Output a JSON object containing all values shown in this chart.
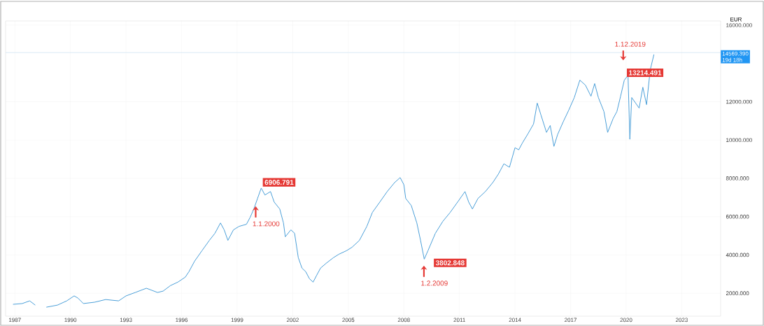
{
  "chart_data": {
    "type": "line",
    "ylabel": "EUR",
    "x": [
      1986.9,
      1987.4,
      1987.8,
      1988.1,
      1988.3,
      1988.7,
      1989.3,
      1989.8,
      1990.2,
      1990.4,
      1990.7,
      1991.3,
      1991.9,
      1992.6,
      1993.0,
      1993.5,
      1994.1,
      1994.7,
      1995.0,
      1995.4,
      1995.8,
      1996.2,
      1996.4,
      1996.7,
      1997.1,
      1997.5,
      1997.8,
      1998.1,
      1998.3,
      1998.5,
      1998.8,
      1999.1,
      1999.5,
      1999.7,
      1999.9,
      2000.1,
      2000.3,
      2000.5,
      2000.8,
      2001.0,
      2001.3,
      2001.5,
      2001.6,
      2001.9,
      2002.1,
      2002.3,
      2002.5,
      2002.7,
      2002.9,
      2003.1,
      2003.3,
      2003.5,
      2003.8,
      2004.2,
      2004.5,
      2004.9,
      2005.2,
      2005.6,
      2006.0,
      2006.3,
      2006.7,
      2007.1,
      2007.5,
      2007.8,
      2008.0,
      2008.1,
      2008.4,
      2008.7,
      2008.9,
      2009.1,
      2009.3,
      2009.7,
      2010.1,
      2010.5,
      2010.9,
      2011.3,
      2011.5,
      2011.7,
      2012.0,
      2012.4,
      2012.8,
      2013.1,
      2013.4,
      2013.7,
      2014.0,
      2014.2,
      2014.4,
      2014.7,
      2015.0,
      2015.2,
      2015.4,
      2015.7,
      2015.9,
      2016.1,
      2016.3,
      2016.6,
      2016.9,
      2017.2,
      2017.5,
      2017.8,
      2018.1,
      2018.3,
      2018.5,
      2018.8,
      2019.0,
      2019.3,
      2019.5,
      2019.7,
      2019.9,
      2020.1,
      2020.2,
      2020.3,
      2020.7,
      2020.9,
      2021.1,
      2021.3,
      2021.5
    ],
    "series": [
      {
        "color": "#4a9fd8",
        "values": [
          1420,
          1460,
          1600,
          1380,
          null,
          1270,
          1380,
          1600,
          1860,
          1750,
          1460,
          1530,
          1670,
          1600,
          1860,
          2040,
          2260,
          2040,
          2110,
          2400,
          2580,
          2840,
          3130,
          3670,
          4220,
          4760,
          5130,
          5670,
          5310,
          4760,
          5310,
          5490,
          5600,
          5960,
          6400,
          6950,
          7490,
          7130,
          7310,
          6760,
          6400,
          5670,
          4950,
          5310,
          5130,
          3860,
          3310,
          3130,
          2760,
          2580,
          2950,
          3310,
          3560,
          3860,
          4040,
          4220,
          4400,
          4760,
          5490,
          6220,
          6760,
          7310,
          7780,
          8040,
          7670,
          6950,
          6580,
          5670,
          4760,
          3780,
          4220,
          5130,
          5750,
          6220,
          6760,
          7310,
          6760,
          6400,
          6950,
          7310,
          7780,
          8220,
          8760,
          8580,
          9600,
          9490,
          9850,
          10330,
          10840,
          11930,
          11310,
          10400,
          10760,
          9670,
          10290,
          10950,
          11560,
          12220,
          13130,
          12870,
          12290,
          12950,
          12220,
          11490,
          10400,
          11130,
          11490,
          12290,
          13130,
          13380,
          10040,
          12220,
          11670,
          12760,
          11850,
          13670,
          14470
        ]
      }
    ],
    "xlim": [
      1986.5,
      2025.1
    ],
    "ylim": [
      800,
      16220
    ],
    "xticks": [
      1987,
      1990,
      1993,
      1996,
      1999,
      2002,
      2005,
      2008,
      2011,
      2014,
      2017,
      2020,
      2023
    ],
    "yticks": [
      {
        "value": 2000,
        "label": "2000.000"
      },
      {
        "value": 4000,
        "label": "4000.000"
      },
      {
        "value": 6000,
        "label": "6000.000"
      },
      {
        "value": 8000,
        "label": "8000.000"
      },
      {
        "value": 10000,
        "label": "10000.000"
      },
      {
        "value": 12000,
        "label": "12000.000"
      },
      {
        "value": 16000,
        "label": "16000.000"
      }
    ],
    "grid": true,
    "ref_lines": [
      {
        "axis": "y",
        "value": 14569.39,
        "label": "14569.390",
        "color": "#cfe3f3"
      }
    ],
    "annotations": [
      "1.1.2000",
      {
        "text": "6906.791",
        "x": 2000.0,
        "y": 6906.791
      },
      "1.2.2009",
      {
        "text": "3802.848",
        "x": 2009.083,
        "y": 3802.848
      },
      "1.12.2019",
      {
        "text": "13214.491",
        "x": 2019.917,
        "y": 13214.491
      },
      "19d 18h"
    ]
  }
}
